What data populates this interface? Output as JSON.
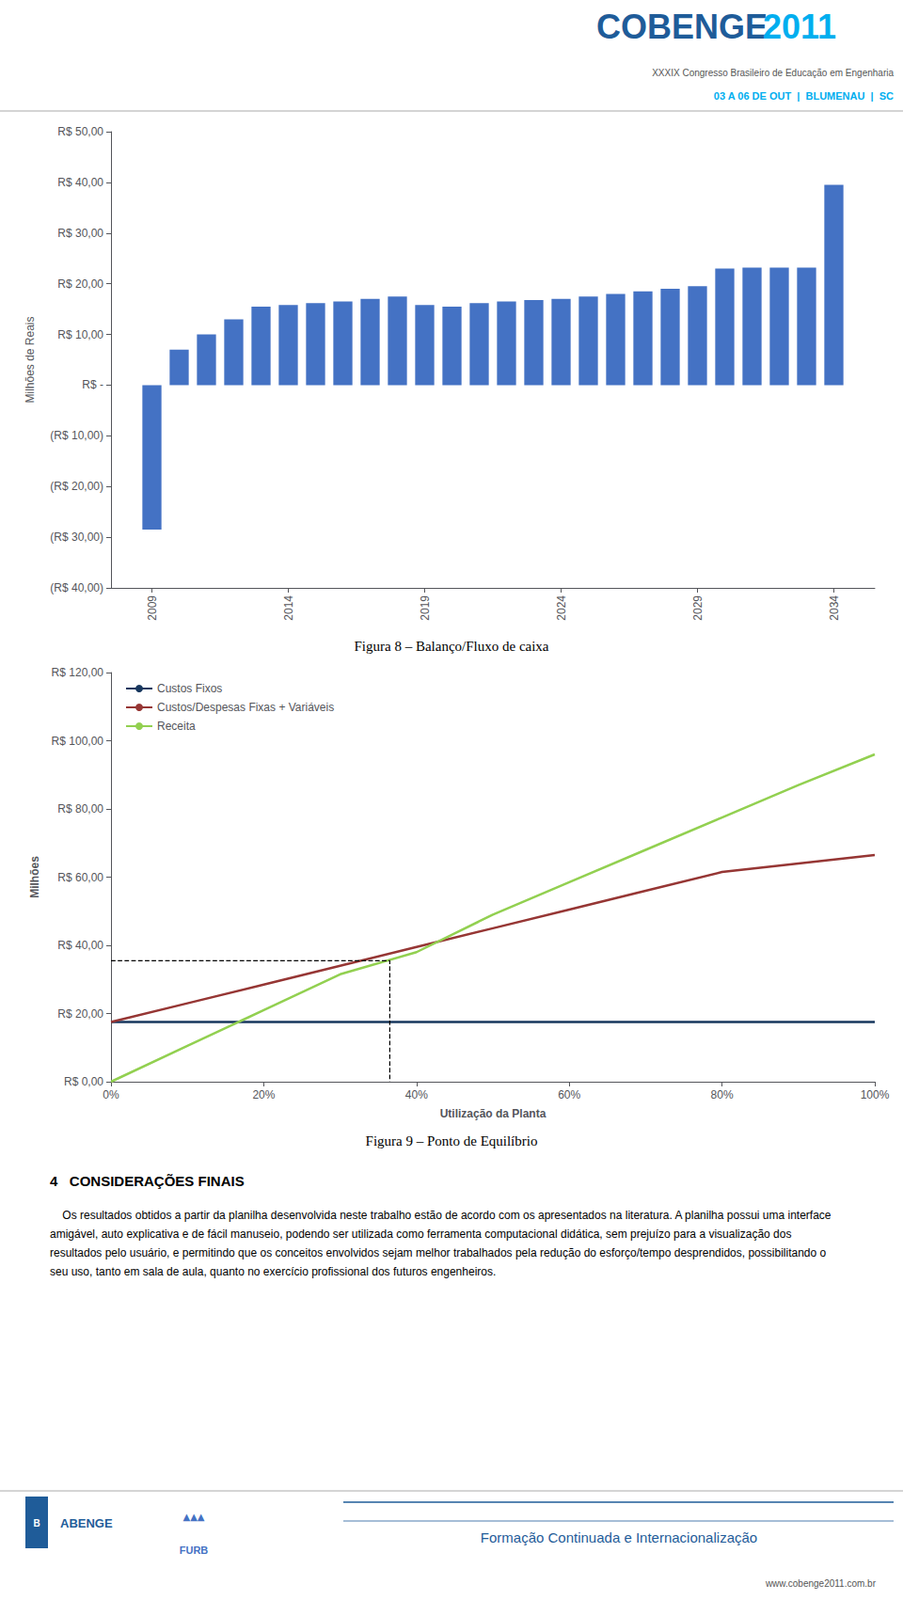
{
  "annotations": [
    {
      "text": "COBENGE",
      "color": "#1F5C99"
    },
    {
      "text": "2011",
      "color": "#00AEEF"
    },
    {
      "text": "XXXIX Congresso Brasileiro de Educação em Engenharia",
      "color": "#555555"
    },
    {
      "text": "03 A 06 DE OUT  |  BLUMENAU  |  SC",
      "color": "#00AEEF"
    },
    {
      "text": "4   CONSIDERAÇÕES FINAIS",
      "color": "#000000"
    },
    {
      "text": "    Os resultados obtidos a partir da planilha desenvolvida neste trabalho estão de acordo com os apresentados na literatura. A planilha possui uma interface amigável, auto explicativa e de fácil manuseio, podendo ser utilizada como ferramenta computacional didática, sem prejuízo para a visualização dos resultados pelo usuário, e permitindo que os conceitos envolvidos sejam melhor trabalhados pela redução do esforço/tempo desprendidos, possibilitando o seu uso, tanto em sala de aula, quanto no exercício profissional dos futuros engenheiros.",
      "color": "#000000"
    },
    {
      "text": "B",
      "color": "#ffffff"
    },
    {
      "text": "ABENGE",
      "color": "#1F5C99"
    },
    {
      "text": "▲▲▲",
      "color": "#4472C4"
    },
    {
      "text": "FURB",
      "color": "#4472C4"
    },
    {
      "text": "Formação Continuada e Internacionalização",
      "color": "#1F5C99"
    },
    {
      "text": "www.cobenge2011.com.br",
      "color": "#555555"
    }
  ],
  "chart_data": [
    {
      "type": "bar",
      "title": "Figura 8 – Balanço/Fluxo de caixa",
      "ylabel": "Milhões de Reais",
      "x": [
        2009,
        2010,
        2011,
        2012,
        2013,
        2014,
        2015,
        2016,
        2017,
        2018,
        2019,
        2020,
        2021,
        2022,
        2023,
        2024,
        2025,
        2026,
        2027,
        2028,
        2029,
        2030,
        2031,
        2032,
        2033,
        2034
      ],
      "values": [
        -28.5,
        7.0,
        10.0,
        13.0,
        15.5,
        15.8,
        16.2,
        16.5,
        17.0,
        17.5,
        15.8,
        15.5,
        16.2,
        16.5,
        16.8,
        17.0,
        17.5,
        18.0,
        18.5,
        19.0,
        19.5,
        23.0,
        23.2,
        23.2,
        23.2,
        39.5
      ],
      "color": "#4472C4",
      "xlim": [
        2007.5,
        2035.5
      ],
      "xticks": [
        2009,
        2014,
        2019,
        2024,
        2029,
        2034
      ],
      "ylim": [
        -40,
        50
      ],
      "yticks": [
        {
          "value": 50,
          "label": "R$ 50,00"
        },
        {
          "value": 40,
          "label": "R$ 40,00"
        },
        {
          "value": 30,
          "label": "R$ 30,00"
        },
        {
          "value": 20,
          "label": "R$ 20,00"
        },
        {
          "value": 10,
          "label": "R$ 10,00"
        },
        {
          "value": 0,
          "label": "R$ -"
        },
        {
          "value": -10,
          "label": "(R$ 10,00)"
        },
        {
          "value": -20,
          "label": "(R$ 20,00)"
        },
        {
          "value": -30,
          "label": "(R$ 30,00)"
        },
        {
          "value": -40,
          "label": "(R$ 40,00)"
        }
      ],
      "grid": false
    },
    {
      "type": "line",
      "title": "Figura 9 – Ponto de Equilíbrio",
      "xlabel": "Utilização da Planta",
      "ylabel": "Milhões",
      "x": [
        0.0,
        0.1,
        0.2,
        0.3,
        0.4,
        0.5,
        0.6,
        0.7,
        0.8,
        0.9,
        1.0
      ],
      "series": [
        {
          "name": "Custos Fixos",
          "color": "#17375E",
          "values": [
            17.5,
            17.5,
            17.5,
            17.5,
            17.5,
            17.5,
            17.5,
            17.5,
            17.5,
            17.5,
            17.5
          ]
        },
        {
          "name": "Custos/Despesas Fixas + Variáveis",
          "color": "#963634",
          "values": [
            17.5,
            23.0,
            28.5,
            34.0,
            39.5,
            45.0,
            50.5,
            56.0,
            61.5,
            64.0,
            66.5
          ]
        },
        {
          "name": "Receita",
          "color": "#92D050",
          "values": [
            0.0,
            10.5,
            21.0,
            31.5,
            38.0,
            49.0,
            58.5,
            68.0,
            77.5,
            87.0,
            96.0
          ]
        }
      ],
      "breakeven": {
        "x": 0.365,
        "y": 35.5,
        "color": "#000000",
        "line_style": "dashed"
      },
      "xlim": [
        0.0,
        1.0
      ],
      "xticks": [
        {
          "value": 0.0,
          "label": "0%"
        },
        {
          "value": 0.2,
          "label": "20%"
        },
        {
          "value": 0.4,
          "label": "40%"
        },
        {
          "value": 0.6,
          "label": "60%"
        },
        {
          "value": 0.8,
          "label": "80%"
        },
        {
          "value": 1.0,
          "label": "100%"
        }
      ],
      "ylim": [
        0,
        120
      ],
      "yticks": [
        {
          "value": 0,
          "label": "R$ 0,00"
        },
        {
          "value": 20,
          "label": "R$ 20,00"
        },
        {
          "value": 40,
          "label": "R$ 40,00"
        },
        {
          "value": 60,
          "label": "R$ 60,00"
        },
        {
          "value": 80,
          "label": "R$ 80,00"
        },
        {
          "value": 100,
          "label": "R$ 100,00"
        },
        {
          "value": 120,
          "label": "R$ 120,00"
        }
      ],
      "legend": "upper left",
      "grid": false
    }
  ]
}
